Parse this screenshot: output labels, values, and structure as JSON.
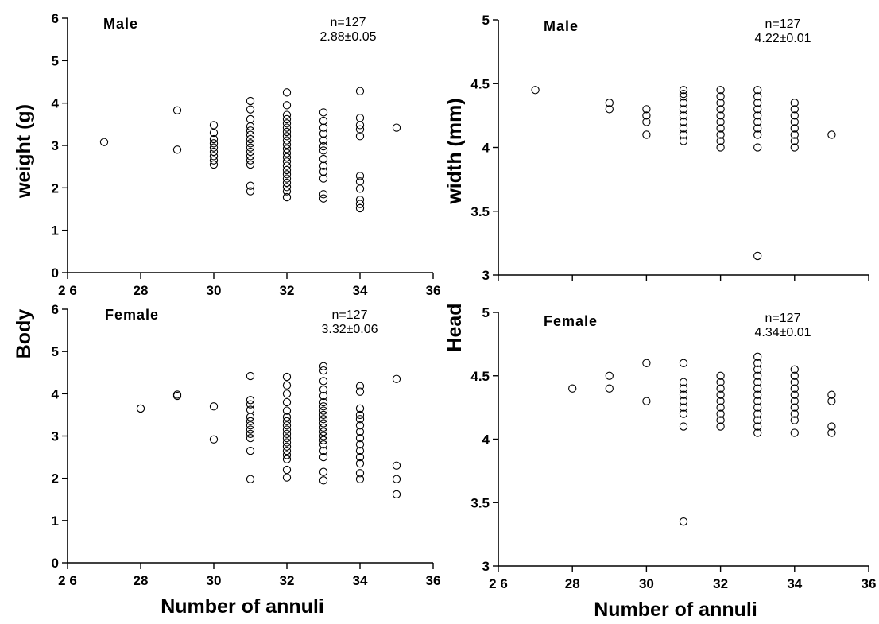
{
  "ylabels": {
    "body_top": "weight (g)",
    "body_bottom": "Body",
    "head_top": "width (mm)",
    "head_bottom": "Head"
  },
  "chart_data": [
    {
      "type": "scatter",
      "panel": "body-weight-male",
      "group_label": "Male",
      "annotation": [
        "n=127",
        "2.88±0.05"
      ],
      "xlabel": "",
      "ylabel": "",
      "xlim": [
        26,
        36
      ],
      "ylim": [
        0,
        6
      ],
      "xticks": [
        26,
        28,
        30,
        32,
        34,
        36
      ],
      "xtick_labels": [
        "2 6",
        "28",
        "30",
        "32",
        "34",
        "36"
      ],
      "yticks": [
        0,
        1,
        2,
        3,
        4,
        5,
        6
      ],
      "ytick_labels": [
        "0",
        "1",
        "2",
        "3",
        "4",
        "5",
        "6"
      ],
      "series": [
        {
          "points": [
            [
              27,
              3.08
            ],
            [
              29,
              3.83
            ],
            [
              29,
              2.9
            ],
            [
              30,
              3.48
            ],
            [
              30,
              3.3
            ],
            [
              30,
              3.15
            ],
            [
              30,
              3.05
            ],
            [
              30,
              2.95
            ],
            [
              30,
              2.85
            ],
            [
              30,
              2.75
            ],
            [
              30,
              2.65
            ],
            [
              30,
              2.55
            ],
            [
              31,
              4.05
            ],
            [
              31,
              3.85
            ],
            [
              31,
              3.62
            ],
            [
              31,
              3.45
            ],
            [
              31,
              3.35
            ],
            [
              31,
              3.25
            ],
            [
              31,
              3.15
            ],
            [
              31,
              3.05
            ],
            [
              31,
              2.95
            ],
            [
              31,
              2.85
            ],
            [
              31,
              2.75
            ],
            [
              31,
              2.65
            ],
            [
              31,
              2.55
            ],
            [
              31,
              2.05
            ],
            [
              31,
              1.92
            ],
            [
              32,
              4.25
            ],
            [
              32,
              3.95
            ],
            [
              32,
              3.72
            ],
            [
              32,
              3.62
            ],
            [
              32,
              3.52
            ],
            [
              32,
              3.42
            ],
            [
              32,
              3.32
            ],
            [
              32,
              3.22
            ],
            [
              32,
              3.12
            ],
            [
              32,
              3.02
            ],
            [
              32,
              2.92
            ],
            [
              32,
              2.82
            ],
            [
              32,
              2.72
            ],
            [
              32,
              2.62
            ],
            [
              32,
              2.52
            ],
            [
              32,
              2.42
            ],
            [
              32,
              2.32
            ],
            [
              32,
              2.22
            ],
            [
              32,
              2.12
            ],
            [
              32,
              2.02
            ],
            [
              32,
              1.92
            ],
            [
              32,
              1.78
            ],
            [
              33,
              3.78
            ],
            [
              33,
              3.58
            ],
            [
              33,
              3.42
            ],
            [
              33,
              3.28
            ],
            [
              33,
              3.12
            ],
            [
              33,
              2.98
            ],
            [
              33,
              2.88
            ],
            [
              33,
              2.68
            ],
            [
              33,
              2.52
            ],
            [
              33,
              2.38
            ],
            [
              33,
              2.22
            ],
            [
              33,
              1.85
            ],
            [
              33,
              1.75
            ],
            [
              34,
              4.28
            ],
            [
              34,
              3.65
            ],
            [
              34,
              3.48
            ],
            [
              34,
              3.38
            ],
            [
              34,
              3.22
            ],
            [
              34,
              2.28
            ],
            [
              34,
              2.15
            ],
            [
              34,
              1.98
            ],
            [
              34,
              1.72
            ],
            [
              34,
              1.62
            ],
            [
              34,
              1.52
            ],
            [
              35,
              3.42
            ]
          ]
        }
      ]
    },
    {
      "type": "scatter",
      "panel": "head-width-male",
      "group_label": "Male",
      "annotation": [
        "n=127",
        "4.22±0.01"
      ],
      "xlabel": "",
      "ylabel": "",
      "xlim": [
        26,
        36
      ],
      "ylim": [
        3,
        5
      ],
      "xticks": [
        26,
        28,
        30,
        32,
        34,
        36
      ],
      "xtick_labels": [
        "",
        "",
        "",
        "",
        "",
        ""
      ],
      "yticks": [
        3,
        3.5,
        4,
        4.5,
        5
      ],
      "ytick_labels": [
        "3",
        "3.5",
        "4",
        "4.5",
        "5"
      ],
      "series": [
        {
          "points": [
            [
              27,
              4.45
            ],
            [
              29,
              4.35
            ],
            [
              29,
              4.3
            ],
            [
              30,
              4.3
            ],
            [
              30,
              4.25
            ],
            [
              30,
              4.2
            ],
            [
              30,
              4.1
            ],
            [
              31,
              4.45
            ],
            [
              31,
              4.42
            ],
            [
              31,
              4.4
            ],
            [
              31,
              4.35
            ],
            [
              31,
              4.3
            ],
            [
              31,
              4.25
            ],
            [
              31,
              4.2
            ],
            [
              31,
              4.15
            ],
            [
              31,
              4.1
            ],
            [
              31,
              4.05
            ],
            [
              32,
              4.45
            ],
            [
              32,
              4.4
            ],
            [
              32,
              4.35
            ],
            [
              32,
              4.3
            ],
            [
              32,
              4.25
            ],
            [
              32,
              4.2
            ],
            [
              32,
              4.15
            ],
            [
              32,
              4.1
            ],
            [
              32,
              4.05
            ],
            [
              32,
              4.0
            ],
            [
              33,
              4.45
            ],
            [
              33,
              4.4
            ],
            [
              33,
              4.35
            ],
            [
              33,
              4.3
            ],
            [
              33,
              4.25
            ],
            [
              33,
              4.2
            ],
            [
              33,
              4.15
            ],
            [
              33,
              4.1
            ],
            [
              33,
              4.0
            ],
            [
              33,
              3.15
            ],
            [
              34,
              4.35
            ],
            [
              34,
              4.3
            ],
            [
              34,
              4.25
            ],
            [
              34,
              4.2
            ],
            [
              34,
              4.15
            ],
            [
              34,
              4.1
            ],
            [
              34,
              4.05
            ],
            [
              34,
              4.0
            ],
            [
              35,
              4.1
            ]
          ]
        }
      ]
    },
    {
      "type": "scatter",
      "panel": "body-weight-female",
      "group_label": "Female",
      "annotation": [
        "n=127",
        "3.32±0.06"
      ],
      "xlabel": "Number of annuli",
      "ylabel": "",
      "xlim": [
        26,
        36
      ],
      "ylim": [
        0,
        6
      ],
      "xticks": [
        26,
        28,
        30,
        32,
        34,
        36
      ],
      "xtick_labels": [
        "2 6",
        "28",
        "30",
        "32",
        "34",
        "36"
      ],
      "yticks": [
        0,
        1,
        2,
        3,
        4,
        5,
        6
      ],
      "ytick_labels": [
        "0",
        "1",
        "2",
        "3",
        "4",
        "5",
        "6"
      ],
      "series": [
        {
          "points": [
            [
              28,
              3.65
            ],
            [
              29,
              3.98
            ],
            [
              29,
              3.95
            ],
            [
              30,
              3.7
            ],
            [
              30,
              2.92
            ],
            [
              31,
              4.42
            ],
            [
              31,
              3.85
            ],
            [
              31,
              3.75
            ],
            [
              31,
              3.62
            ],
            [
              31,
              3.45
            ],
            [
              31,
              3.35
            ],
            [
              31,
              3.25
            ],
            [
              31,
              3.15
            ],
            [
              31,
              3.05
            ],
            [
              31,
              2.95
            ],
            [
              31,
              2.65
            ],
            [
              31,
              1.98
            ],
            [
              32,
              4.4
            ],
            [
              32,
              4.2
            ],
            [
              32,
              4.0
            ],
            [
              32,
              3.8
            ],
            [
              32,
              3.6
            ],
            [
              32,
              3.45
            ],
            [
              32,
              3.35
            ],
            [
              32,
              3.25
            ],
            [
              32,
              3.15
            ],
            [
              32,
              3.05
            ],
            [
              32,
              2.95
            ],
            [
              32,
              2.85
            ],
            [
              32,
              2.75
            ],
            [
              32,
              2.65
            ],
            [
              32,
              2.55
            ],
            [
              32,
              2.45
            ],
            [
              32,
              2.2
            ],
            [
              32,
              2.02
            ],
            [
              33,
              4.65
            ],
            [
              33,
              4.55
            ],
            [
              33,
              4.3
            ],
            [
              33,
              4.1
            ],
            [
              33,
              3.95
            ],
            [
              33,
              3.8
            ],
            [
              33,
              3.7
            ],
            [
              33,
              3.6
            ],
            [
              33,
              3.5
            ],
            [
              33,
              3.4
            ],
            [
              33,
              3.3
            ],
            [
              33,
              3.2
            ],
            [
              33,
              3.1
            ],
            [
              33,
              3.0
            ],
            [
              33,
              2.9
            ],
            [
              33,
              2.8
            ],
            [
              33,
              2.65
            ],
            [
              33,
              2.5
            ],
            [
              33,
              2.15
            ],
            [
              33,
              1.95
            ],
            [
              34,
              4.18
            ],
            [
              34,
              4.05
            ],
            [
              34,
              3.65
            ],
            [
              34,
              3.5
            ],
            [
              34,
              3.4
            ],
            [
              34,
              3.25
            ],
            [
              34,
              3.1
            ],
            [
              34,
              2.95
            ],
            [
              34,
              2.8
            ],
            [
              34,
              2.65
            ],
            [
              34,
              2.5
            ],
            [
              34,
              2.35
            ],
            [
              34,
              2.12
            ],
            [
              34,
              1.98
            ],
            [
              35,
              4.35
            ],
            [
              35,
              2.3
            ],
            [
              35,
              1.98
            ],
            [
              35,
              1.62
            ]
          ]
        }
      ]
    },
    {
      "type": "scatter",
      "panel": "head-width-female",
      "group_label": "Female",
      "annotation": [
        "n=127",
        "4.34±0.01"
      ],
      "xlabel": "Number of annuli",
      "ylabel": "",
      "xlim": [
        26,
        36
      ],
      "ylim": [
        3,
        5
      ],
      "xticks": [
        26,
        28,
        30,
        32,
        34,
        36
      ],
      "xtick_labels": [
        "2 6",
        "28",
        "30",
        "32",
        "34",
        "36"
      ],
      "yticks": [
        3,
        3.5,
        4,
        4.5,
        5
      ],
      "ytick_labels": [
        "3",
        "3.5",
        "4",
        "4.5",
        "5"
      ],
      "series": [
        {
          "points": [
            [
              28,
              4.4
            ],
            [
              29,
              4.5
            ],
            [
              29,
              4.4
            ],
            [
              30,
              4.6
            ],
            [
              30,
              4.3
            ],
            [
              31,
              4.6
            ],
            [
              31,
              4.45
            ],
            [
              31,
              4.4
            ],
            [
              31,
              4.35
            ],
            [
              31,
              4.3
            ],
            [
              31,
              4.25
            ],
            [
              31,
              4.2
            ],
            [
              31,
              4.1
            ],
            [
              31,
              3.35
            ],
            [
              32,
              4.5
            ],
            [
              32,
              4.45
            ],
            [
              32,
              4.4
            ],
            [
              32,
              4.35
            ],
            [
              32,
              4.3
            ],
            [
              32,
              4.25
            ],
            [
              32,
              4.2
            ],
            [
              32,
              4.15
            ],
            [
              32,
              4.1
            ],
            [
              33,
              4.65
            ],
            [
              33,
              4.6
            ],
            [
              33,
              4.55
            ],
            [
              33,
              4.5
            ],
            [
              33,
              4.45
            ],
            [
              33,
              4.4
            ],
            [
              33,
              4.35
            ],
            [
              33,
              4.3
            ],
            [
              33,
              4.25
            ],
            [
              33,
              4.2
            ],
            [
              33,
              4.15
            ],
            [
              33,
              4.1
            ],
            [
              33,
              4.05
            ],
            [
              34,
              4.55
            ],
            [
              34,
              4.5
            ],
            [
              34,
              4.45
            ],
            [
              34,
              4.4
            ],
            [
              34,
              4.35
            ],
            [
              34,
              4.3
            ],
            [
              34,
              4.25
            ],
            [
              34,
              4.2
            ],
            [
              34,
              4.15
            ],
            [
              34,
              4.05
            ],
            [
              35,
              4.35
            ],
            [
              35,
              4.3
            ],
            [
              35,
              4.1
            ],
            [
              35,
              4.05
            ]
          ]
        }
      ]
    }
  ]
}
